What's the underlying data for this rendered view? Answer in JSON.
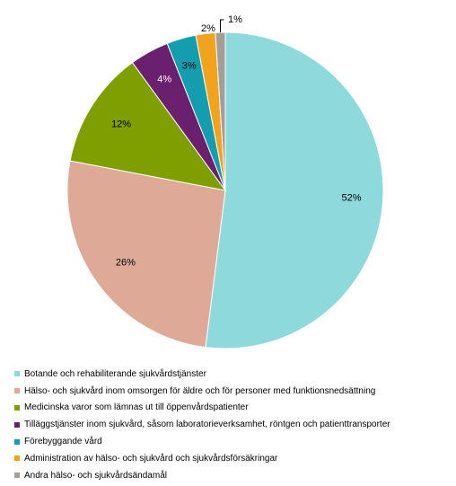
{
  "chart_data": {
    "type": "pie",
    "title": "",
    "legend_position": "bottom",
    "start_angle_deg": 0,
    "direction": "clockwise",
    "series": [
      {
        "values": [
          52,
          26,
          12,
          4,
          3,
          2,
          1
        ],
        "labels": [
          "52%",
          "26%",
          "12%",
          "4%",
          "3%",
          "2%",
          "1%"
        ]
      }
    ],
    "categories": [
      "Botande och rehabiliterande sjukvårdstjänster",
      "Hälso- och sjukvård inom omsorgen för äldre och för personer med funktionsnedsättning",
      "Medicinska varor som lämnas ut till öppenvårdspatienter",
      "Tilläggstjänster inom sjukvård, såsom laboratorieverksamhet, röntgen och patienttransporter",
      "Förebyggande vård",
      "Administration av hälso- och sjukvård och sjukvårdsförsäkringar",
      "Andra hälso- och sjukvårdsändamål"
    ],
    "colors": [
      "#8ED9DC",
      "#DFA998",
      "#7F9E00",
      "#6A1F6F",
      "#149DAF",
      "#F2A31E",
      "#A39E9A"
    ]
  }
}
